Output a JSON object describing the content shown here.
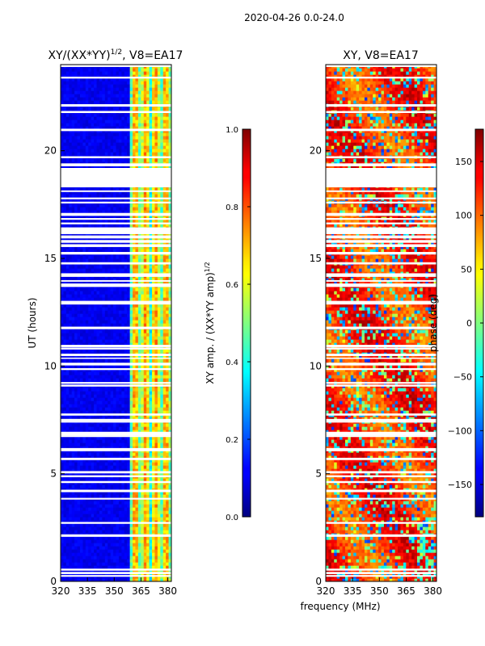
{
  "figure": {
    "suptitle": "2020-04-26 0.0-24.0",
    "shared_xlabel": "frequency (MHz)"
  },
  "chart_data": [
    {
      "type": "heatmap",
      "title_base": "XY/(XX*YY)",
      "title_exp": "1/2",
      "title_suffix": ", V8=EA17",
      "xlabel": "",
      "ylabel": "UT (hours)",
      "xlim": [
        320,
        382
      ],
      "ylim": [
        0,
        24
      ],
      "xticks": [
        320,
        335,
        350,
        365,
        380
      ],
      "yticks": [
        0,
        5,
        10,
        15,
        20
      ],
      "colorbar": {
        "label_base": "XY amp. / (XX*YY amp)",
        "label_exp": "1/2",
        "range": [
          0.0,
          1.0
        ],
        "ticks": [
          "0.0",
          "0.2",
          "0.4",
          "0.6",
          "0.8",
          "1.0"
        ],
        "tick_values": [
          0.0,
          0.2,
          0.4,
          0.6,
          0.8,
          1.0
        ],
        "colormap": "jet"
      },
      "description": "amplitude ratio; mostly low (~0.05) below 359 MHz, high (0.3-0.8) in 359-382 MHz band",
      "gap_hours": [
        [
          18.3,
          19.2
        ]
      ]
    },
    {
      "type": "heatmap",
      "title": "XY, V8=EA17",
      "xlabel": "",
      "ylabel": "",
      "xlim": [
        320,
        382
      ],
      "ylim": [
        0,
        24
      ],
      "xticks": [
        320,
        335,
        350,
        365,
        380
      ],
      "yticks": [
        0,
        5,
        10,
        15,
        20
      ],
      "colorbar": {
        "label": "phase (deg)",
        "range": [
          -180,
          180
        ],
        "ticks": [
          "150",
          "100",
          "50",
          "0",
          "−50",
          "−100",
          "−150"
        ],
        "tick_values": [
          150,
          100,
          50,
          0,
          -50,
          -100,
          -150
        ],
        "colormap": "jet"
      },
      "description": "XY phase; mostly 100-160 deg with wrapping to negative values in places",
      "gap_hours": [
        [
          18.3,
          19.2
        ]
      ]
    }
  ]
}
